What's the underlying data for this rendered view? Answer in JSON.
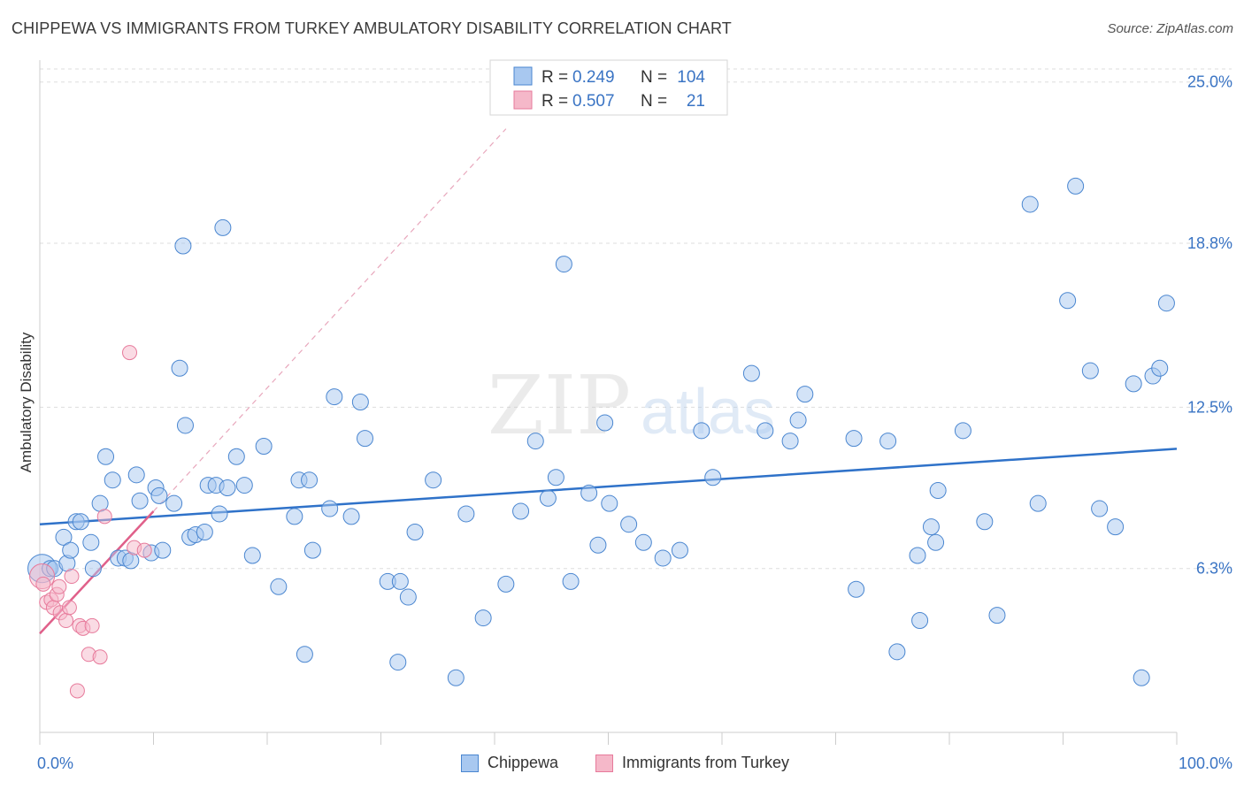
{
  "title": "CHIPPEWA VS IMMIGRANTS FROM TURKEY AMBULATORY DISABILITY CORRELATION CHART",
  "source": "Source: ZipAtlas.com",
  "watermark": {
    "zip": "ZIP",
    "atlas": "atlas"
  },
  "colors": {
    "blue_fill": "#a8c8f0",
    "blue_stroke": "#4a86d0",
    "blue_line": "#2f72c9",
    "pink_fill": "#f5b8c9",
    "pink_stroke": "#e77a9b",
    "pink_line": "#e0608a",
    "axis_text_blue": "#3a74c4",
    "grid": "#dddddd"
  },
  "legend": {
    "rows": [
      {
        "r_label": "R =",
        "r_value": "0.249",
        "n_label": "N =",
        "n_value": "104",
        "series": "chippewa"
      },
      {
        "r_label": "R =",
        "r_value": "0.507",
        "n_label": "N =",
        "n_value": "21",
        "series": "turkey"
      }
    ]
  },
  "chart_data": {
    "type": "scatter",
    "title": "CHIPPEWA VS IMMIGRANTS FROM TURKEY AMBULATORY DISABILITY CORRELATION CHART",
    "xlabel": "",
    "ylabel": "Ambulatory Disability",
    "xlim": [
      0,
      100
    ],
    "ylim": [
      0,
      25.5
    ],
    "x_tick_labels": [
      "0.0%",
      "100.0%"
    ],
    "y_ticks": [
      6.3,
      12.5,
      18.8,
      25.0
    ],
    "y_tick_labels": [
      "6.3%",
      "12.5%",
      "18.8%",
      "25.0%"
    ],
    "grid": true,
    "legend_position": "top-center",
    "series": [
      {
        "name": "Chippewa",
        "color": "#a8c8f0",
        "trend": {
          "x": [
            0,
            100
          ],
          "y": [
            8.0,
            10.9
          ]
        },
        "points": [
          [
            0.2,
            6.3
          ],
          [
            0.9,
            6.3
          ],
          [
            1.3,
            6.3
          ],
          [
            2.1,
            7.5
          ],
          [
            2.4,
            6.5
          ],
          [
            2.7,
            7.0
          ],
          [
            3.2,
            8.1
          ],
          [
            3.6,
            8.1
          ],
          [
            4.5,
            7.3
          ],
          [
            4.7,
            6.3
          ],
          [
            5.3,
            8.8
          ],
          [
            5.8,
            10.6
          ],
          [
            6.4,
            9.7
          ],
          [
            6.9,
            6.7
          ],
          [
            7.5,
            6.7
          ],
          [
            8.0,
            6.6
          ],
          [
            8.5,
            9.9
          ],
          [
            8.8,
            8.9
          ],
          [
            9.8,
            6.9
          ],
          [
            10.2,
            9.4
          ],
          [
            10.5,
            9.1
          ],
          [
            10.8,
            7.0
          ],
          [
            11.8,
            8.8
          ],
          [
            12.3,
            14.0
          ],
          [
            12.6,
            18.7
          ],
          [
            12.8,
            11.8
          ],
          [
            13.2,
            7.5
          ],
          [
            13.7,
            7.6
          ],
          [
            14.5,
            7.7
          ],
          [
            14.8,
            9.5
          ],
          [
            15.5,
            9.5
          ],
          [
            15.8,
            8.4
          ],
          [
            16.1,
            19.4
          ],
          [
            16.5,
            9.4
          ],
          [
            17.3,
            10.6
          ],
          [
            18.0,
            9.5
          ],
          [
            18.7,
            6.8
          ],
          [
            19.7,
            11.0
          ],
          [
            21.0,
            5.6
          ],
          [
            22.4,
            8.3
          ],
          [
            22.8,
            9.7
          ],
          [
            23.3,
            3.0
          ],
          [
            23.7,
            9.7
          ],
          [
            24.0,
            7.0
          ],
          [
            25.5,
            8.6
          ],
          [
            25.9,
            12.9
          ],
          [
            27.4,
            8.3
          ],
          [
            28.2,
            12.7
          ],
          [
            28.6,
            11.3
          ],
          [
            30.6,
            5.8
          ],
          [
            31.5,
            2.7
          ],
          [
            31.7,
            5.8
          ],
          [
            32.4,
            5.2
          ],
          [
            33.0,
            7.7
          ],
          [
            34.6,
            9.7
          ],
          [
            36.6,
            2.1
          ],
          [
            37.5,
            8.4
          ],
          [
            39.0,
            4.4
          ],
          [
            41.0,
            5.7
          ],
          [
            42.3,
            8.5
          ],
          [
            43.6,
            11.2
          ],
          [
            44.7,
            9.0
          ],
          [
            45.4,
            9.8
          ],
          [
            46.1,
            18.0
          ],
          [
            46.7,
            5.8
          ],
          [
            48.3,
            9.2
          ],
          [
            49.1,
            7.2
          ],
          [
            49.7,
            11.9
          ],
          [
            50.1,
            8.8
          ],
          [
            51.8,
            8.0
          ],
          [
            53.1,
            7.3
          ],
          [
            54.8,
            6.7
          ],
          [
            56.3,
            7.0
          ],
          [
            58.2,
            11.6
          ],
          [
            59.2,
            9.8
          ],
          [
            62.6,
            13.8
          ],
          [
            63.8,
            11.6
          ],
          [
            66.0,
            11.2
          ],
          [
            66.7,
            12.0
          ],
          [
            67.3,
            13.0
          ],
          [
            71.6,
            11.3
          ],
          [
            71.8,
            5.5
          ],
          [
            74.6,
            11.2
          ],
          [
            75.4,
            3.1
          ],
          [
            77.2,
            6.8
          ],
          [
            77.4,
            4.3
          ],
          [
            78.4,
            7.9
          ],
          [
            78.8,
            7.3
          ],
          [
            79.0,
            9.3
          ],
          [
            81.2,
            11.6
          ],
          [
            83.1,
            8.1
          ],
          [
            84.2,
            4.5
          ],
          [
            87.1,
            20.3
          ],
          [
            87.8,
            8.8
          ],
          [
            90.4,
            16.6
          ],
          [
            91.1,
            21.0
          ],
          [
            92.4,
            13.9
          ],
          [
            93.2,
            8.6
          ],
          [
            94.6,
            7.9
          ],
          [
            96.2,
            13.4
          ],
          [
            96.9,
            2.1
          ],
          [
            97.9,
            13.7
          ],
          [
            98.5,
            14.0
          ],
          [
            99.1,
            16.5
          ]
        ]
      },
      {
        "name": "Immigrants from Turkey",
        "color": "#f5b8c9",
        "trend": {
          "x": [
            0,
            10
          ],
          "y": [
            3.8,
            8.5
          ],
          "dashed_extension": {
            "x": [
              10,
              41
            ],
            "y": [
              8.5,
              23.2
            ]
          }
        },
        "points": [
          [
            0.2,
            6.0
          ],
          [
            0.3,
            5.7
          ],
          [
            0.6,
            5.0
          ],
          [
            1.0,
            5.1
          ],
          [
            1.2,
            4.8
          ],
          [
            1.5,
            5.3
          ],
          [
            1.7,
            5.6
          ],
          [
            1.8,
            4.6
          ],
          [
            2.3,
            4.3
          ],
          [
            2.6,
            4.8
          ],
          [
            2.8,
            6.0
          ],
          [
            3.3,
            1.6
          ],
          [
            3.5,
            4.1
          ],
          [
            3.8,
            4.0
          ],
          [
            4.3,
            3.0
          ],
          [
            4.6,
            4.1
          ],
          [
            5.3,
            2.9
          ],
          [
            5.7,
            8.3
          ],
          [
            7.9,
            14.6
          ],
          [
            8.3,
            7.1
          ],
          [
            9.2,
            7.0
          ]
        ]
      }
    ]
  },
  "bottom_legend": {
    "chippewa": "Chippewa",
    "turkey": "Immigrants from Turkey"
  }
}
